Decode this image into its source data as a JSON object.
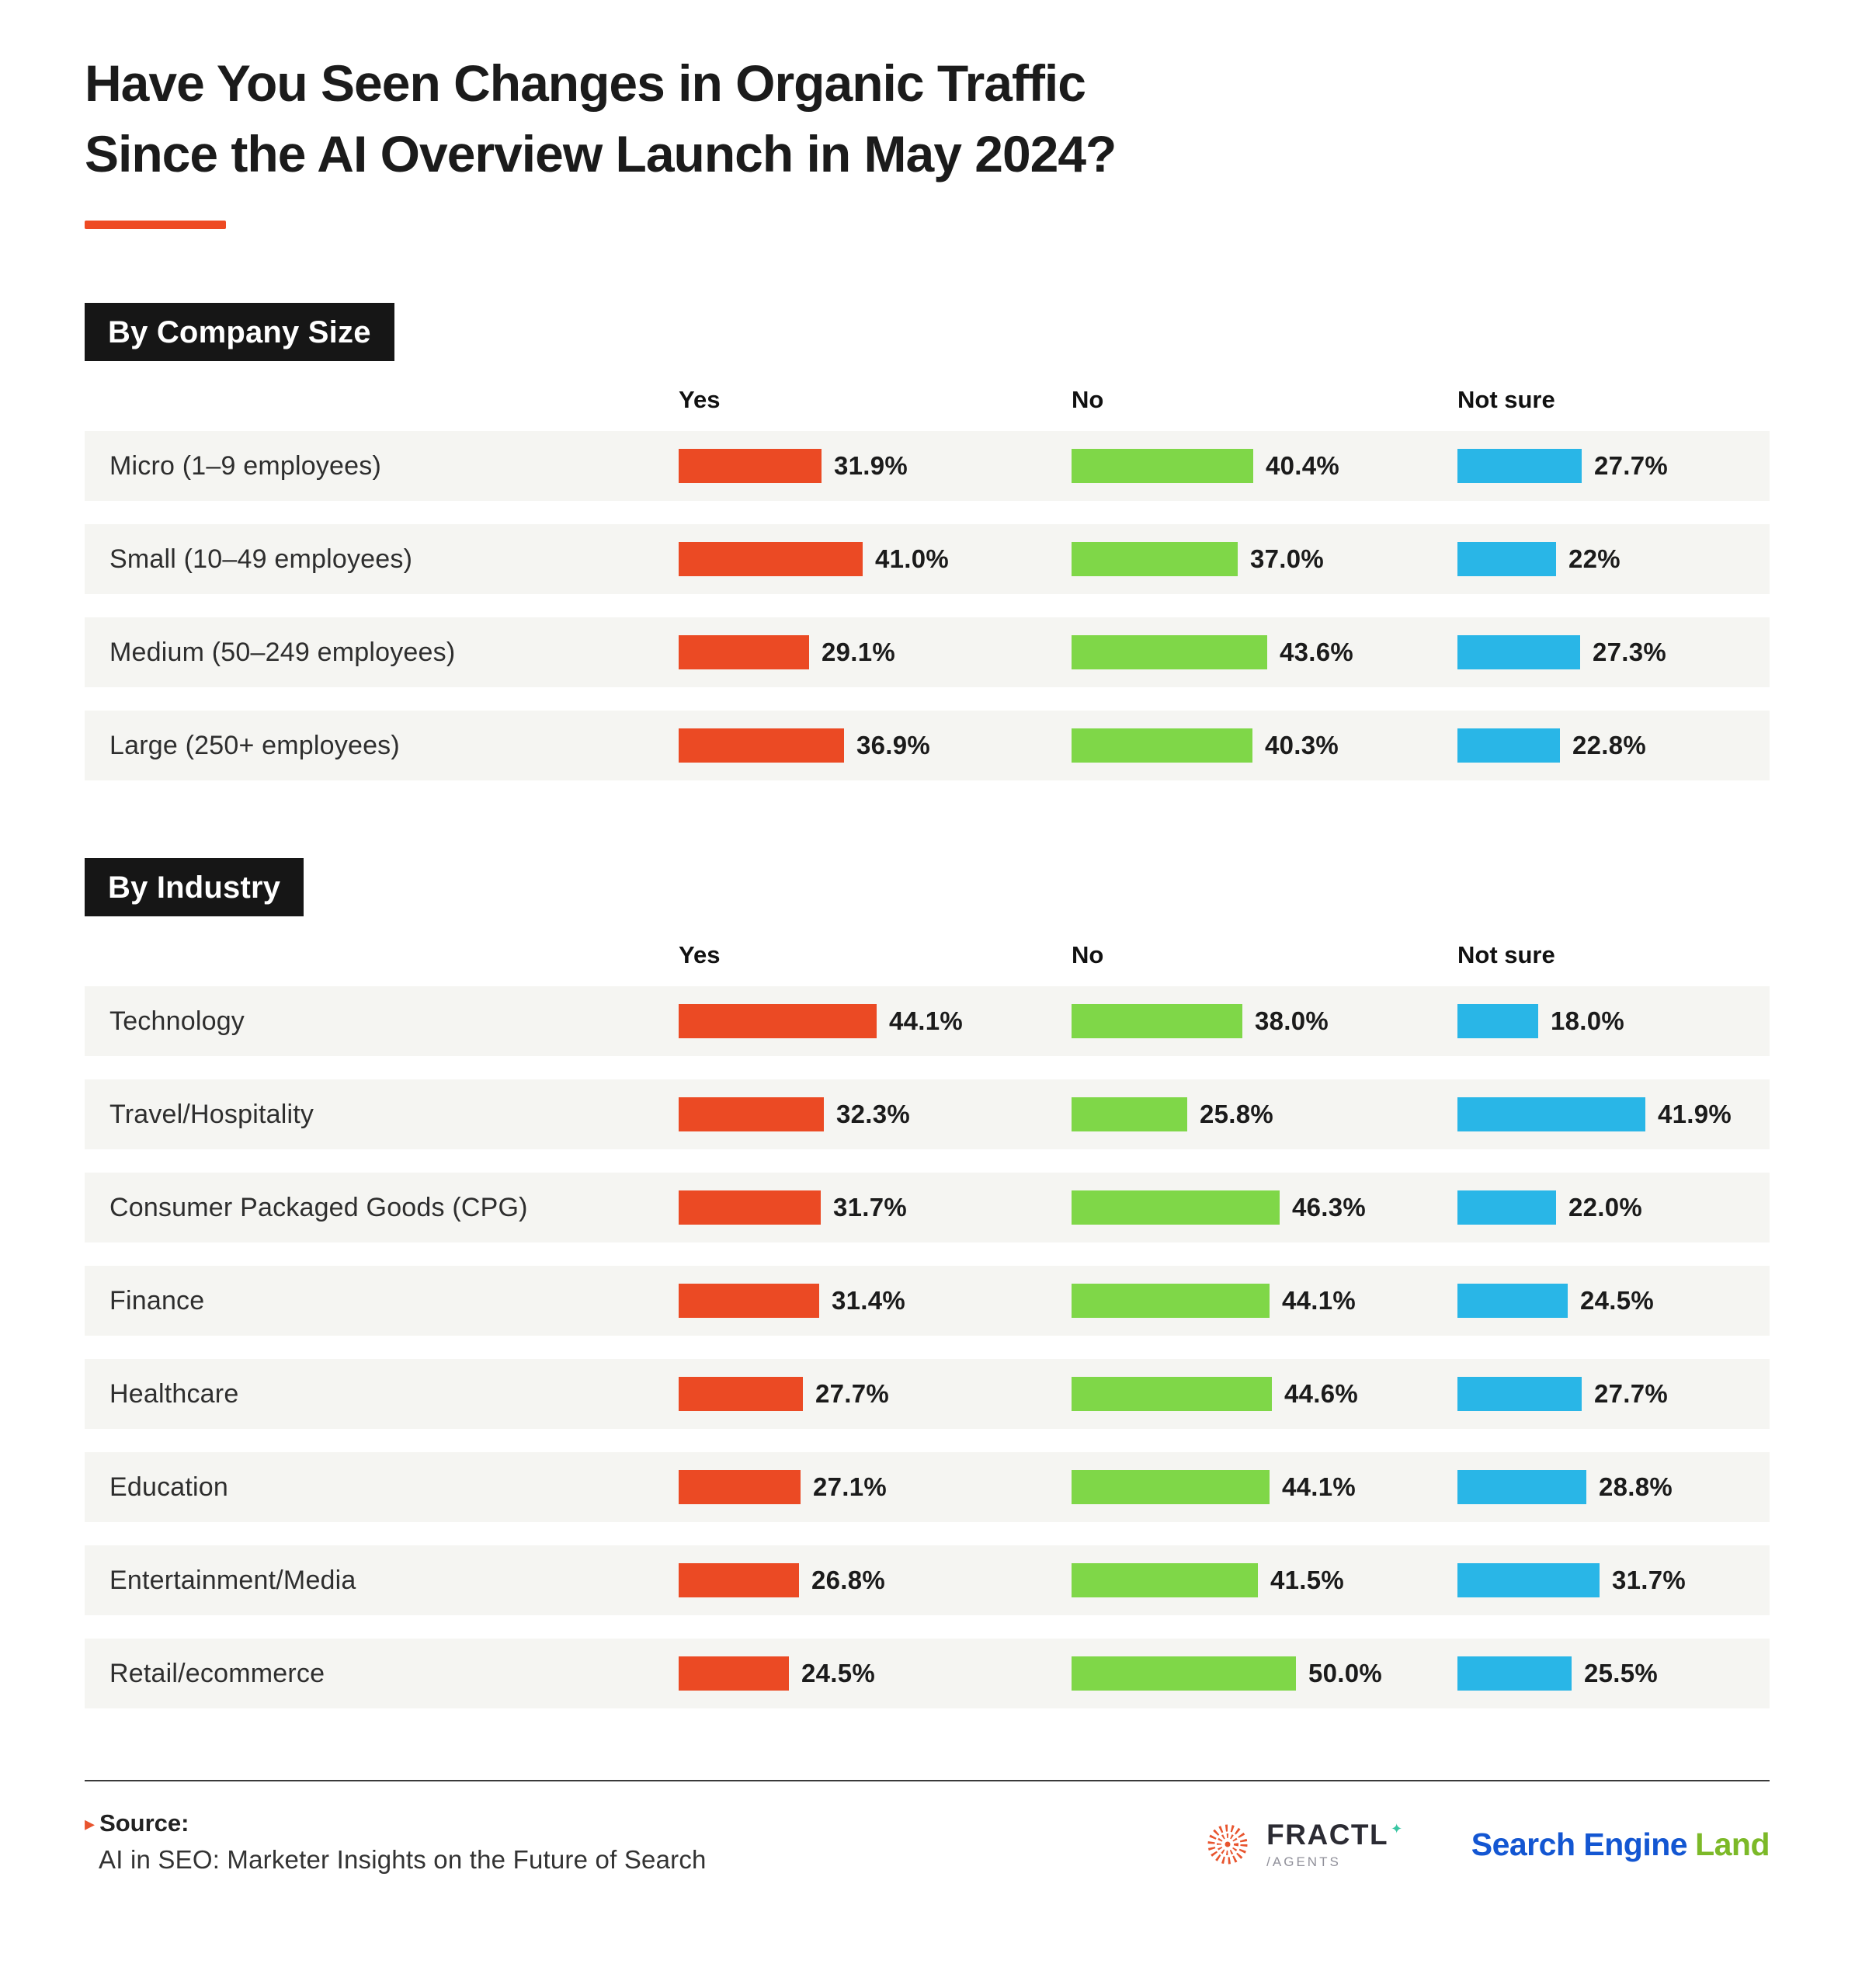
{
  "page": {
    "title_line1": "Have You Seen Changes in Organic Traffic",
    "title_line2": "Since the AI Overview Launch in May 2024?"
  },
  "colors": {
    "accent_orange": "#EE4A23",
    "yes_bar": "#EB4A24",
    "no_bar": "#7FD748",
    "not_sure_bar": "#29B6E7",
    "row_background": "#F5F5F2",
    "section_header_background": "#161616",
    "sel_blue": "#1356D2",
    "sel_green": "#7CB928"
  },
  "chart_data": [
    {
      "type": "bar",
      "title": "By Company Size",
      "columns": [
        "Yes",
        "No",
        "Not sure"
      ],
      "categories": [
        "Micro (1–9 employees)",
        "Small (10–49 employees)",
        "Medium (50–249 employees)",
        "Large (250+ employees)"
      ],
      "series": [
        {
          "name": "Yes",
          "color": "#EB4A24",
          "values": [
            31.9,
            41.0,
            29.1,
            36.9
          ],
          "labels": [
            "31.9%",
            "41.0%",
            "29.1%",
            "36.9%"
          ]
        },
        {
          "name": "No",
          "color": "#7FD748",
          "values": [
            40.4,
            37.0,
            43.6,
            40.3
          ],
          "labels": [
            "40.4%",
            "37.0%",
            "43.6%",
            "40.3%"
          ]
        },
        {
          "name": "Not sure",
          "color": "#29B6E7",
          "values": [
            27.7,
            22,
            27.3,
            22.8
          ],
          "labels": [
            "27.7%",
            "22%",
            "27.3%",
            "22.8%"
          ]
        }
      ],
      "xlim": [
        0,
        60
      ],
      "value_unit": "%",
      "legend_position": "column-headers",
      "grid": false
    },
    {
      "type": "bar",
      "title": "By Industry",
      "columns": [
        "Yes",
        "No",
        "Not sure"
      ],
      "categories": [
        "Technology",
        "Travel/Hospitality",
        "Consumer Packaged Goods (CPG)",
        "Finance",
        "Healthcare",
        "Education",
        "Entertainment/Media",
        "Retail/ecommerce"
      ],
      "series": [
        {
          "name": "Yes",
          "color": "#EB4A24",
          "values": [
            44.1,
            32.3,
            31.7,
            31.4,
            27.7,
            27.1,
            26.8,
            24.5
          ],
          "labels": [
            "44.1%",
            "32.3%",
            "31.7%",
            "31.4%",
            "27.7%",
            "27.1%",
            "26.8%",
            "24.5%"
          ]
        },
        {
          "name": "No",
          "color": "#7FD748",
          "values": [
            38.0,
            25.8,
            46.3,
            44.1,
            44.6,
            44.1,
            41.5,
            50.0
          ],
          "labels": [
            "38.0%",
            "25.8%",
            "46.3%",
            "44.1%",
            "44.6%",
            "44.1%",
            "41.5%",
            "50.0%"
          ]
        },
        {
          "name": "Not sure",
          "color": "#29B6E7",
          "values": [
            18.0,
            41.9,
            22.0,
            24.5,
            27.7,
            28.8,
            31.7,
            25.5
          ],
          "labels": [
            "18.0%",
            "41.9%",
            "22.0%",
            "24.5%",
            "27.7%",
            "28.8%",
            "31.7%",
            "25.5%"
          ]
        }
      ],
      "xlim": [
        0,
        60
      ],
      "value_unit": "%",
      "legend_position": "column-headers",
      "grid": false
    }
  ],
  "footer": {
    "source_label": "Source:",
    "source_text": "AI in SEO: Marketer Insights on the Future of Search",
    "fractl_name": "FRACTL",
    "fractl_sub": "/AGENTS",
    "sel_part1": "Search Engine",
    "sel_part2": "Land"
  }
}
